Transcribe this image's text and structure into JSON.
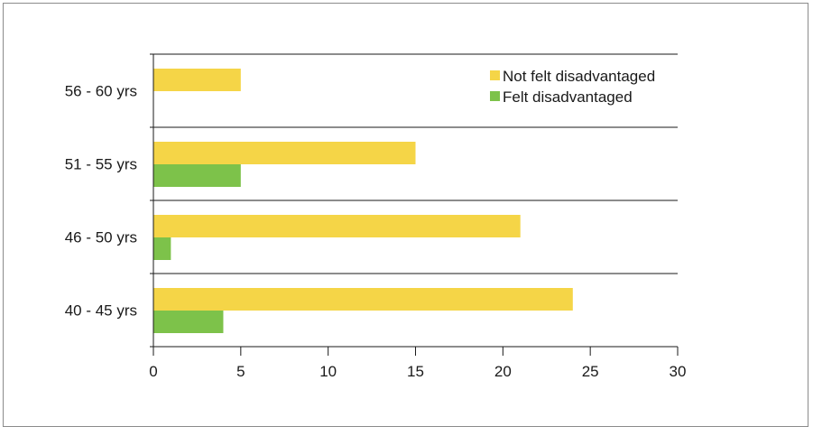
{
  "chart_data": {
    "type": "bar",
    "orientation": "horizontal",
    "categories": [
      "40 - 45 yrs",
      "46 - 50 yrs",
      "51 - 55 yrs",
      "56 - 60 yrs"
    ],
    "series": [
      {
        "name": "Not felt disadvantaged",
        "color": "#f5d547",
        "values": [
          24,
          21,
          15,
          5
        ]
      },
      {
        "name": "Felt disadvantaged",
        "color": "#7dc24a",
        "values": [
          4,
          1,
          5,
          0
        ]
      }
    ],
    "xlim": [
      0,
      30
    ],
    "x_ticks": [
      "0",
      "5",
      "10",
      "15",
      "20",
      "25",
      "30"
    ],
    "grid": "horizontal separators between categories",
    "legend_position": "top-right",
    "title": "",
    "xlabel": "",
    "ylabel": ""
  }
}
